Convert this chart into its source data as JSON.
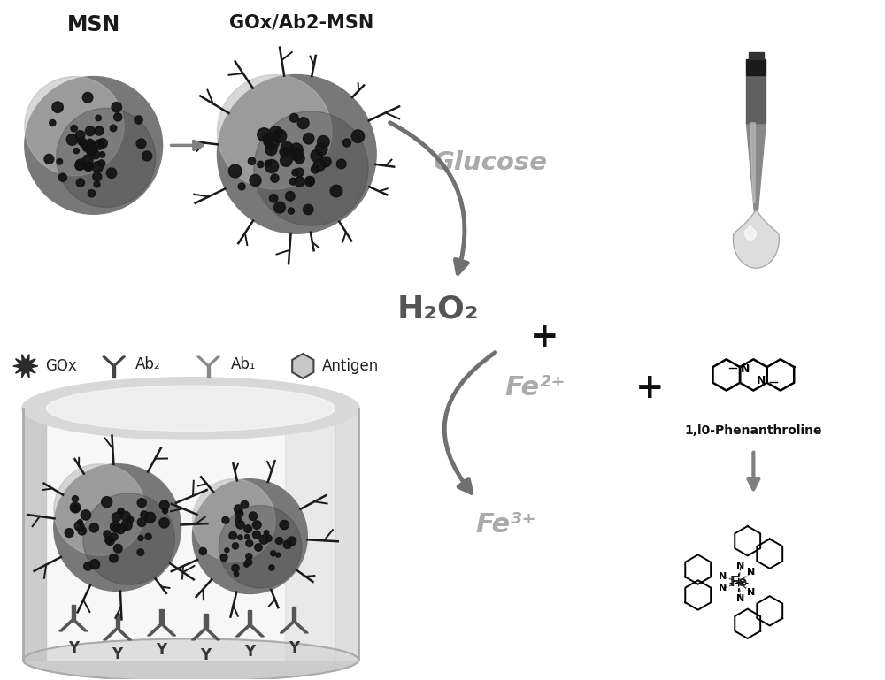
{
  "background_color": "#ffffff",
  "labels": {
    "msn": "MSN",
    "gox_msn": "GOx/Ab2-MSN",
    "glucose": "Glucose",
    "h2o2": "H₂O₂",
    "fe2": "Fe²⁺",
    "fe3": "Fe³⁺",
    "phenanthroline": "1,l0-Phenanthroline",
    "gox": "GOx",
    "ab2": "Ab₂",
    "ab1": "Ab₁",
    "antigen": "Antigen",
    "plus": "+"
  },
  "figsize": [
    10.0,
    7.69
  ],
  "arrow_color": "#808080",
  "text_gray": "#909090",
  "dark": "#202020"
}
